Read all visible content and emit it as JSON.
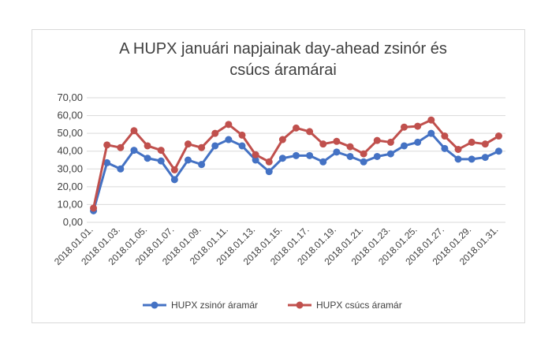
{
  "chart_data": {
    "type": "line",
    "title_lines": [
      "A HUPX januári napjainak day-ahead zsinór és",
      "csúcs  áramárai"
    ],
    "xlabel": "",
    "ylabel": "",
    "ylim": [
      0,
      70
    ],
    "yticks": [
      "0,00",
      "10,00",
      "20,00",
      "30,00",
      "40,00",
      "50,00",
      "60,00",
      "70,00"
    ],
    "grid": true,
    "legend_position": "bottom",
    "x": [
      "2018.01.01.",
      "2018.01.02.",
      "2018.01.03.",
      "2018.01.04.",
      "2018.01.05.",
      "2018.01.06.",
      "2018.01.07.",
      "2018.01.08.",
      "2018.01.09.",
      "2018.01.10.",
      "2018.01.11.",
      "2018.01.12.",
      "2018.01.13.",
      "2018.01.14.",
      "2018.01.15.",
      "2018.01.16.",
      "2018.01.17.",
      "2018.01.18.",
      "2018.01.19.",
      "2018.01.20.",
      "2018.01.21.",
      "2018.01.22.",
      "2018.01.23.",
      "2018.01.24.",
      "2018.01.25.",
      "2018.01.26.",
      "2018.01.27.",
      "2018.01.28.",
      "2018.01.29.",
      "2018.01.30.",
      "2018.01.31."
    ],
    "x_tick_labels": [
      "2018.01.01.",
      "2018.01.03.",
      "2018.01.05.",
      "2018.01.07.",
      "2018.01.09.",
      "2018.01.11.",
      "2018.01.13.",
      "2018.01.15.",
      "2018.01.17.",
      "2018.01.19.",
      "2018.01.21.",
      "2018.01.23.",
      "2018.01.25.",
      "2018.01.27.",
      "2018.01.29.",
      "2018.01.31."
    ],
    "series": [
      {
        "name": "HUPX zsinór áramár",
        "color": "#4472c4",
        "values": [
          6.5,
          33.5,
          30.0,
          40.5,
          36.0,
          34.5,
          24.0,
          35.0,
          32.5,
          43.0,
          46.5,
          43.0,
          35.0,
          28.5,
          36.0,
          37.5,
          37.5,
          34.0,
          39.5,
          37.0,
          34.0,
          37.0,
          38.5,
          43.0,
          45.0,
          50.0,
          41.5,
          35.5,
          35.5,
          36.5,
          40.0
        ]
      },
      {
        "name": "HUPX csúcs áramár",
        "color": "#c0504d",
        "values": [
          8.0,
          43.5,
          42.0,
          51.5,
          43.0,
          40.5,
          29.5,
          44.0,
          42.0,
          50.0,
          55.0,
          49.0,
          38.0,
          34.0,
          46.5,
          53.0,
          51.0,
          44.0,
          45.5,
          42.5,
          38.5,
          46.0,
          45.0,
          53.5,
          54.0,
          57.5,
          48.5,
          41.0,
          45.0,
          44.0,
          48.5
        ]
      }
    ]
  }
}
